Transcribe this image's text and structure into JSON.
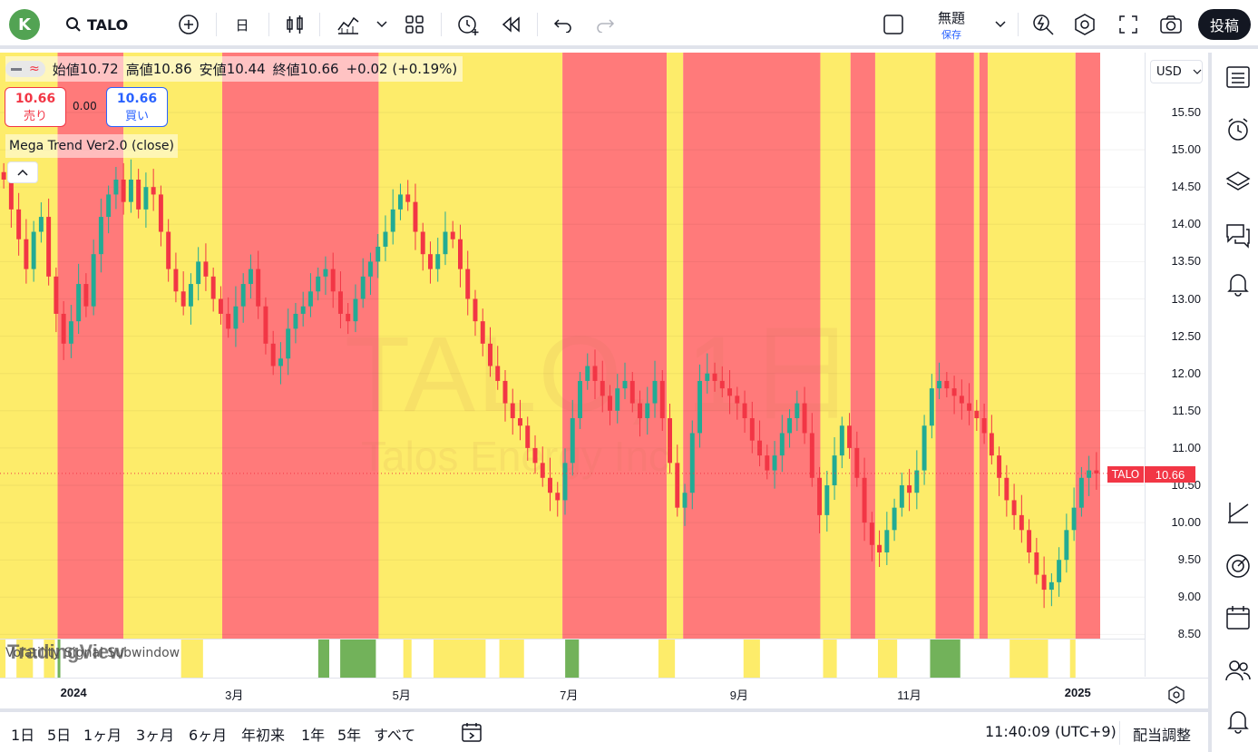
{
  "toolbar": {
    "avatar_letter": "K",
    "symbol": "TALO",
    "interval": "日",
    "layout_name": "無題",
    "layout_sub": "保存",
    "post_label": "投稿"
  },
  "legend": {
    "open_label": "始値",
    "open": "10.72",
    "high_label": "高値",
    "high": "10.86",
    "low_label": "安値",
    "low": "10.44",
    "close_label": "終値",
    "close": "10.66",
    "change": "+0.02 (+0.19%)"
  },
  "trade": {
    "sell_price": "10.66",
    "sell_label": "売り",
    "spread": "0.00",
    "buy_price": "10.66",
    "buy_label": "買い"
  },
  "indicator_title": "Mega Trend Ver2.0 (close)",
  "sub_window_title": "Volatility Signal Subwindow",
  "watermark": {
    "symbol": "TALO, 1日",
    "company": "Talos Energy Inc"
  },
  "brand": "TradingView",
  "currency": "USD",
  "price_scale": [
    "15.50",
    "15.00",
    "14.50",
    "14.00",
    "13.50",
    "13.00",
    "12.50",
    "12.00",
    "11.50",
    "11.00",
    "10.50",
    "10.00",
    "9.50",
    "9.00",
    "8.50"
  ],
  "last_price": {
    "symbol": "TALO",
    "value": "10.66"
  },
  "time_axis": [
    "2024",
    "3月",
    "5月",
    "7月",
    "9月",
    "11月",
    "2025"
  ],
  "ranges": [
    "1日",
    "5日",
    "1ヶ月",
    "3ヶ月",
    "6ヶ月",
    "年初来",
    "1年",
    "5年",
    "すべて"
  ],
  "clock": "11:40:09 (UTC+9)",
  "adjust": "配当調整",
  "colors": {
    "bull": "#22ab94",
    "bear": "#f23645",
    "zone_red": "#ff7a7a",
    "zone_yellow": "#fdec6a",
    "signal_green": "#72b25a",
    "signal_yellow": "#fdec6a"
  },
  "chart_data": {
    "type": "candlestick",
    "title": "TALO, 1日",
    "ylim": [
      8.5,
      15.75
    ],
    "x_range": [
      "2023-12",
      "2025-01"
    ],
    "trend_zones": [
      {
        "from": "2023-12-06",
        "to": "2023-12-27",
        "state": "yellow"
      },
      {
        "from": "2023-12-27",
        "to": "2024-01-20",
        "state": "red"
      },
      {
        "from": "2024-01-20",
        "to": "2024-02-25",
        "state": "yellow"
      },
      {
        "from": "2024-02-25",
        "to": "2024-04-22",
        "state": "red"
      },
      {
        "from": "2024-04-22",
        "to": "2024-06-28",
        "state": "yellow"
      },
      {
        "from": "2024-06-28",
        "to": "2024-08-05",
        "state": "red"
      },
      {
        "from": "2024-08-05",
        "to": "2024-08-11",
        "state": "yellow"
      },
      {
        "from": "2024-08-11",
        "to": "2024-09-30",
        "state": "red"
      },
      {
        "from": "2024-09-30",
        "to": "2024-10-11",
        "state": "yellow"
      },
      {
        "from": "2024-10-11",
        "to": "2024-10-20",
        "state": "red"
      },
      {
        "from": "2024-10-20",
        "to": "2024-11-11",
        "state": "yellow"
      },
      {
        "from": "2024-11-11",
        "to": "2024-11-25",
        "state": "red"
      },
      {
        "from": "2024-11-25",
        "to": "2024-11-27",
        "state": "yellow"
      },
      {
        "from": "2024-11-27",
        "to": "2024-11-30",
        "state": "red"
      },
      {
        "from": "2024-11-30",
        "to": "2025-01-01",
        "state": "yellow"
      },
      {
        "from": "2025-01-01",
        "to": "2025-01-10",
        "state": "red"
      }
    ],
    "series": [
      {
        "name": "TALO",
        "values": [
          14.6,
          14.2,
          13.8,
          13.4,
          13.9,
          14.1,
          13.3,
          12.8,
          12.4,
          12.7,
          13.2,
          12.9,
          13.6,
          14.1,
          14.4,
          14.6,
          14.3,
          14.6,
          14.2,
          14.5,
          14.4,
          13.9,
          13.4,
          13.1,
          12.9,
          13.2,
          13.5,
          13.3,
          13.0,
          12.8,
          12.6,
          12.9,
          13.2,
          13.4,
          12.9,
          12.4,
          12.1,
          12.2,
          12.6,
          12.8,
          12.9,
          13.1,
          13.3,
          13.4,
          13.1,
          12.8,
          12.7,
          13.0,
          13.3,
          13.5,
          13.7,
          13.9,
          14.2,
          14.4,
          14.3,
          13.9,
          13.6,
          13.4,
          13.6,
          13.9,
          13.8,
          13.4,
          13.0,
          12.7,
          12.4,
          12.1,
          11.9,
          11.6,
          11.4,
          11.3,
          11.0,
          10.8,
          10.6,
          10.4,
          10.3,
          10.8,
          11.4,
          11.9,
          12.1,
          11.9,
          11.7,
          11.5,
          11.8,
          11.9,
          11.6,
          11.4,
          11.6,
          11.9,
          11.4,
          10.8,
          10.2,
          10.4,
          11.2,
          11.9,
          12.0,
          11.9,
          11.8,
          11.7,
          11.6,
          11.4,
          11.1,
          10.9,
          10.7,
          10.9,
          11.2,
          11.4,
          11.6,
          11.2,
          10.6,
          10.1,
          10.5,
          10.9,
          11.3,
          11.0,
          10.6,
          10.0,
          9.7,
          9.6,
          9.9,
          10.2,
          10.5,
          10.4,
          10.7,
          11.3,
          11.8,
          11.9,
          11.8,
          11.7,
          11.6,
          11.5,
          11.4,
          11.2,
          10.9,
          10.6,
          10.3,
          10.1,
          9.9,
          9.6,
          9.3,
          9.1,
          9.2,
          9.5,
          9.9,
          10.2,
          10.6,
          10.7,
          10.66
        ]
      }
    ]
  }
}
